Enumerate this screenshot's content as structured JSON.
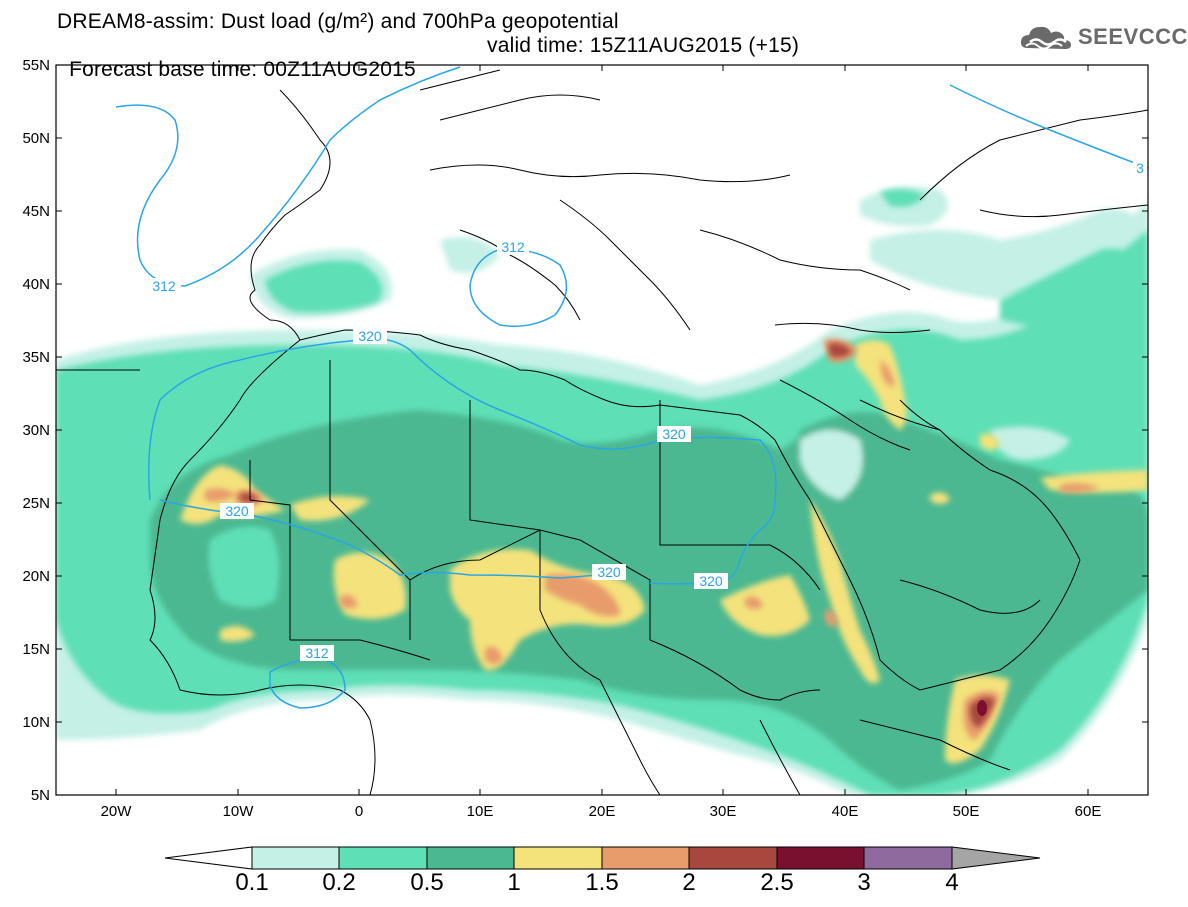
{
  "title": {
    "line1": "DREAM8-assim: Dust load (g/m²) and 700hPa geopotential",
    "line2_left": "Forecast base time: 00Z11AUG2015",
    "line2_right": "valid time: 15Z11AUG2015 (+15)"
  },
  "logo": {
    "text": "SEEVCCC",
    "icon": "cloud-icon"
  },
  "map": {
    "lat_labels": [
      "55N",
      "50N",
      "45N",
      "40N",
      "35N",
      "30N",
      "25N",
      "20N",
      "15N",
      "10N",
      "5N"
    ],
    "lon_labels": [
      "20W",
      "10W",
      "0",
      "10E",
      "20E",
      "30E",
      "40E",
      "50E",
      "60E"
    ],
    "contour_labels": [
      "312",
      "312",
      "320",
      "320",
      "320",
      "320",
      "320",
      "312",
      "3"
    ],
    "colors": {
      "lev1": "#c4f0e6",
      "lev2": "#5fdfb6",
      "lev3": "#4cb891",
      "lev4": "#f4e27b",
      "lev5": "#e89c6c",
      "lev6": "#a8473e",
      "lev7": "#7a1030",
      "contour": "#2aa5e6",
      "border": "#000000"
    }
  },
  "colorbar": {
    "labels": [
      "0.1",
      "0.2",
      "0.5",
      "1",
      "1.5",
      "2",
      "2.5",
      "3",
      "4"
    ],
    "colors": [
      "#c4f0e6",
      "#5fdfb6",
      "#4cb891",
      "#f4e27b",
      "#e89c6c",
      "#a8473e",
      "#7a1030",
      "#8e6a9e"
    ]
  }
}
